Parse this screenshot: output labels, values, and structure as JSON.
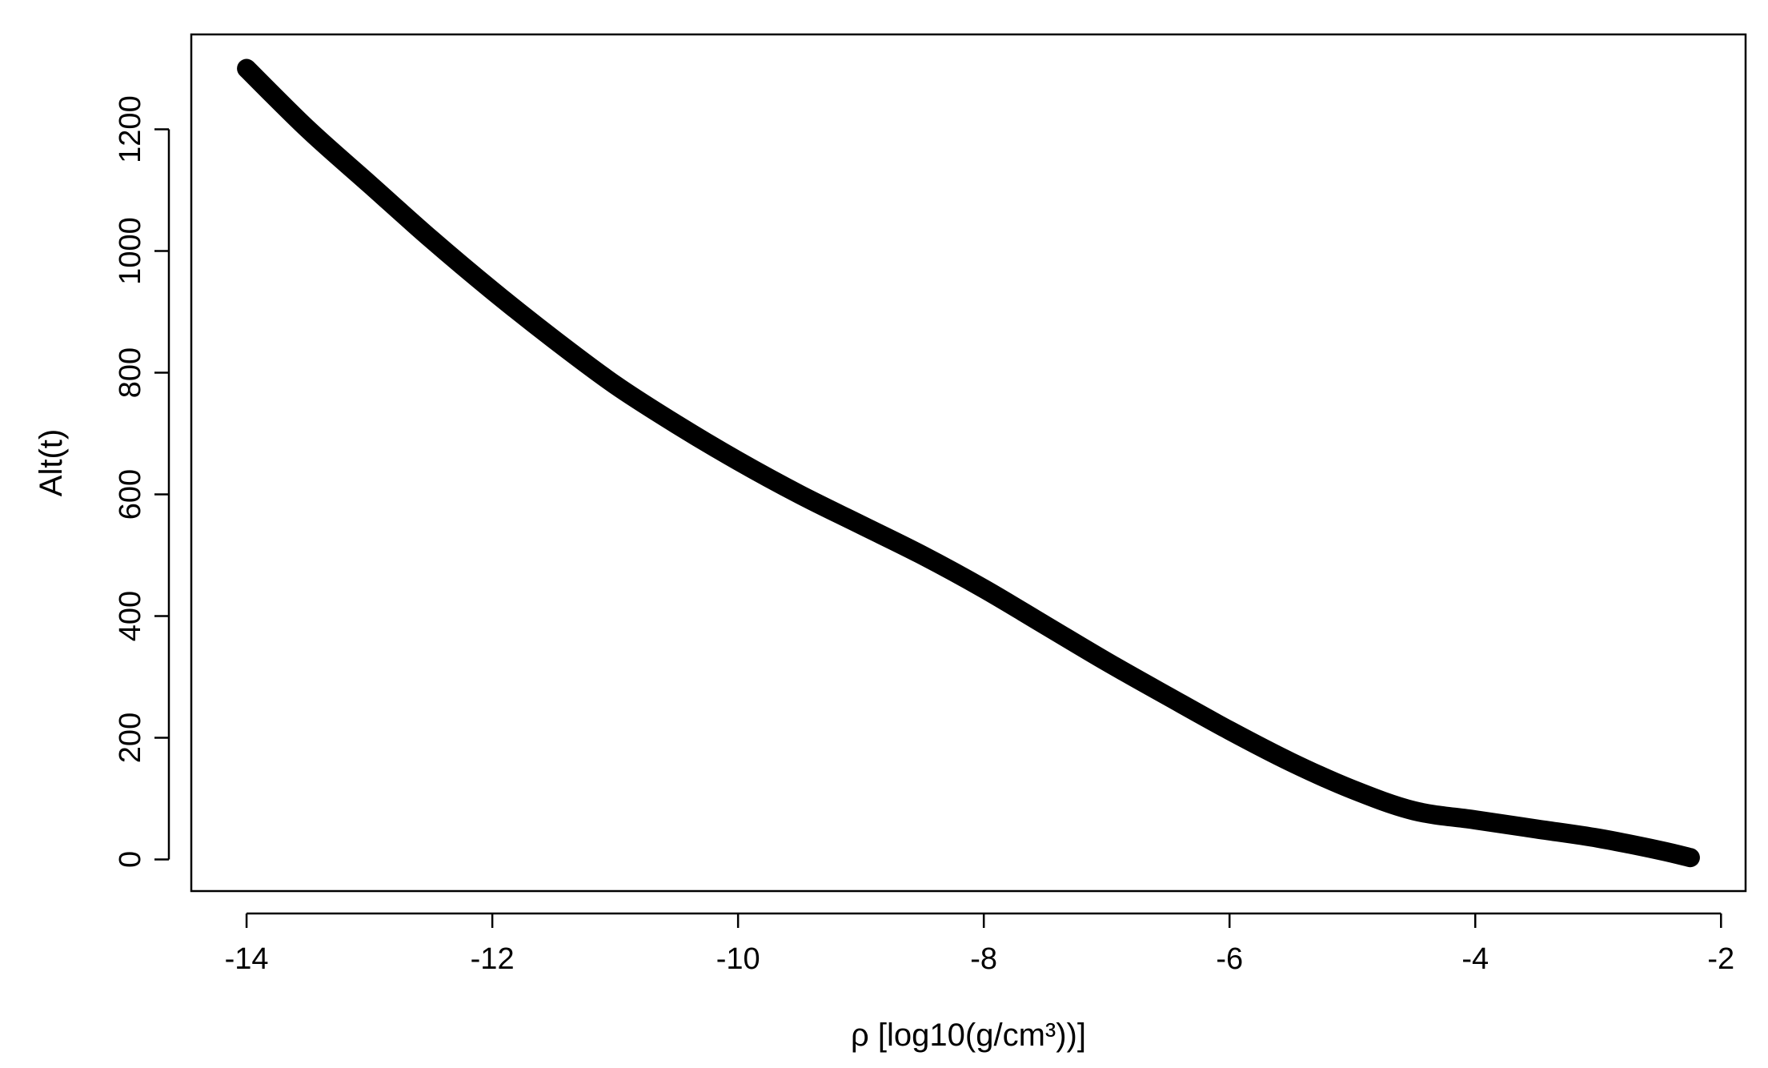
{
  "chart_data": {
    "type": "line",
    "title": "",
    "xlabel": "ρ [log10(g/cm³))]",
    "ylabel": "Alt(t)",
    "xlim": [
      -14.45,
      -1.8
    ],
    "ylim": [
      -52,
      1356
    ],
    "grid": false,
    "legend": "none",
    "x_ticks": [
      -14,
      -12,
      -10,
      -8,
      -6,
      -4,
      -2
    ],
    "y_ticks": [
      0,
      200,
      400,
      600,
      800,
      1000,
      1200
    ],
    "x_tick_labels": [
      "-14",
      "-12",
      "-10",
      "-8",
      "-6",
      "-4",
      "-2"
    ],
    "y_tick_labels": [
      "0",
      "200",
      "400",
      "600",
      "800",
      "1000",
      "1200"
    ],
    "line_color": "#000000",
    "series": [
      {
        "x": [
          -14.0,
          -13.5,
          -13.0,
          -12.5,
          -12.0,
          -11.5,
          -11.0,
          -10.5,
          -10.0,
          -9.5,
          -9.0,
          -8.5,
          -8.0,
          -7.5,
          -7.0,
          -6.5,
          -6.0,
          -5.5,
          -5.0,
          -4.5,
          -4.0,
          -3.5,
          -3.0,
          -2.5,
          -2.25
        ],
        "values": [
          1300,
          1200,
          1110,
          1020,
          935,
          855,
          780,
          715,
          655,
          600,
          550,
          500,
          445,
          385,
          325,
          268,
          212,
          160,
          115,
          80,
          65,
          50,
          35,
          15,
          3
        ]
      }
    ]
  }
}
